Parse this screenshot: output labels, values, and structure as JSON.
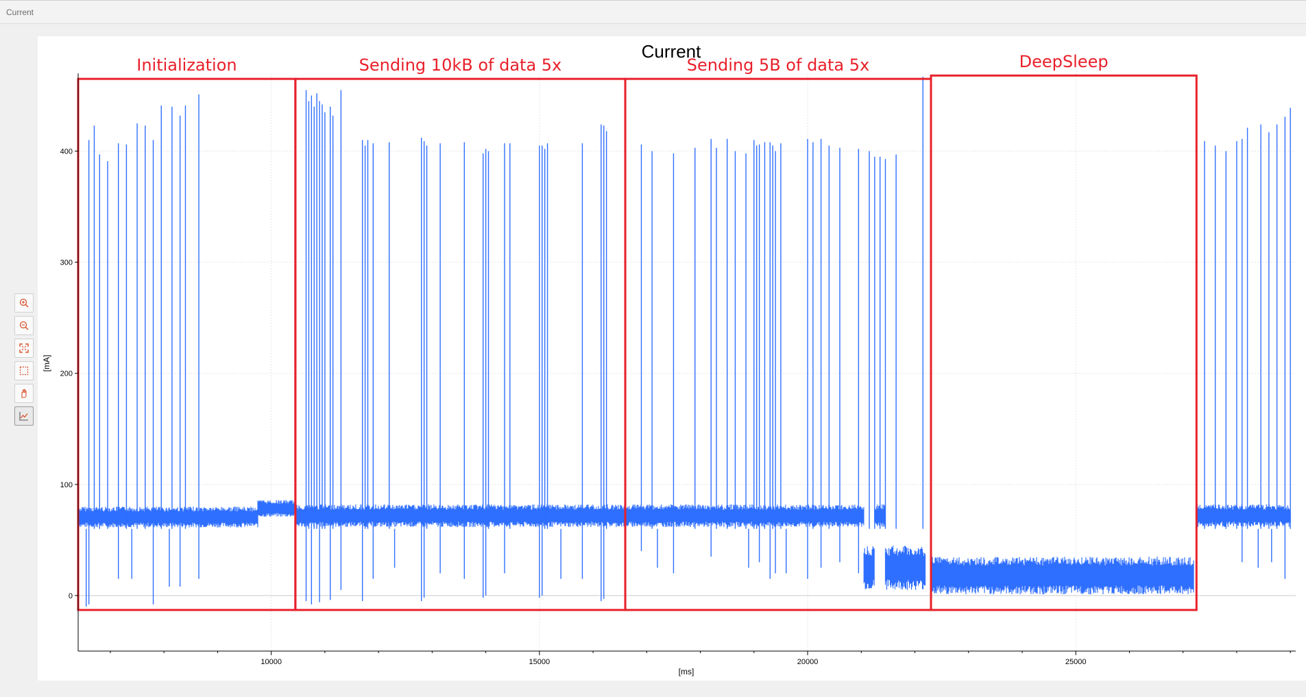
{
  "window": {
    "title": "Current"
  },
  "toolbar": {
    "tools": [
      {
        "icon": "zoom-in-icon"
      },
      {
        "icon": "zoom-out-icon"
      },
      {
        "icon": "fit-to-view-icon"
      },
      {
        "icon": "box-zoom-icon"
      },
      {
        "icon": "pan-hand-icon"
      },
      {
        "icon": "chart-line-icon",
        "active": true
      }
    ]
  },
  "chart_data": {
    "type": "line",
    "title": "Current",
    "xlabel": "[ms]",
    "ylabel": "[mA]",
    "xlim": [
      6400,
      29100
    ],
    "ylim": [
      -50,
      470
    ],
    "x_ticks": [
      10000,
      15000,
      20000,
      25000
    ],
    "y_ticks": [
      0,
      100,
      200,
      300,
      400
    ],
    "grid": true,
    "series_color": "#2f6fff",
    "annotation_color": "#e8202a",
    "regions": [
      {
        "label": "Initialization",
        "x": [
          6400,
          10450
        ],
        "y": [
          -13,
          465
        ]
      },
      {
        "label": "Sending 10kB of data 5x",
        "x": [
          10450,
          16600
        ],
        "y": [
          -13,
          465
        ]
      },
      {
        "label": "Sending 5B of data 5x",
        "x": [
          16600,
          22300
        ],
        "y": [
          -13,
          465
        ]
      },
      {
        "label": "DeepSleep",
        "x": [
          22300,
          27250
        ],
        "y": [
          -13,
          468
        ]
      }
    ],
    "baseline_segments": [
      {
        "x": [
          6400,
          9750
        ],
        "lo": 58,
        "hi": 80
      },
      {
        "x": [
          9750,
          10450
        ],
        "lo": 68,
        "hi": 86
      },
      {
        "x": [
          10450,
          21050
        ],
        "lo": 58,
        "hi": 82
      },
      {
        "x": [
          21050,
          21250
        ],
        "lo": -2,
        "hi": 45
      },
      {
        "x": [
          21250,
          21450
        ],
        "lo": 58,
        "hi": 82
      },
      {
        "x": [
          21450,
          22200
        ],
        "lo": -2,
        "hi": 45
      },
      {
        "x": [
          22300,
          27200
        ],
        "lo": -5,
        "hi": 35
      },
      {
        "x": [
          27250,
          29000
        ],
        "lo": 58,
        "hi": 82
      }
    ],
    "spikes_up": [
      [
        6600,
        410
      ],
      [
        6700,
        423
      ],
      [
        6800,
        397
      ],
      [
        6950,
        391
      ],
      [
        7150,
        407
      ],
      [
        7300,
        406
      ],
      [
        7500,
        425
      ],
      [
        7650,
        423
      ],
      [
        7800,
        410
      ],
      [
        7950,
        441
      ],
      [
        8150,
        440
      ],
      [
        8300,
        432
      ],
      [
        8400,
        441
      ],
      [
        8650,
        451
      ],
      [
        10650,
        455
      ],
      [
        10700,
        445
      ],
      [
        10750,
        450
      ],
      [
        10800,
        440
      ],
      [
        10850,
        452
      ],
      [
        10900,
        445
      ],
      [
        10950,
        442
      ],
      [
        11000,
        435
      ],
      [
        11100,
        440
      ],
      [
        11150,
        432
      ],
      [
        11300,
        455
      ],
      [
        11700,
        410
      ],
      [
        11750,
        405
      ],
      [
        11800,
        410
      ],
      [
        11900,
        407
      ],
      [
        12200,
        408
      ],
      [
        12800,
        412
      ],
      [
        12850,
        409
      ],
      [
        12900,
        405
      ],
      [
        13150,
        407
      ],
      [
        13600,
        408
      ],
      [
        13950,
        398
      ],
      [
        14000,
        402
      ],
      [
        14050,
        400
      ],
      [
        14350,
        407
      ],
      [
        14450,
        407
      ],
      [
        15000,
        405
      ],
      [
        15050,
        405
      ],
      [
        15100,
        402
      ],
      [
        15150,
        407
      ],
      [
        15800,
        407
      ],
      [
        16150,
        424
      ],
      [
        16200,
        423
      ],
      [
        16250,
        418
      ],
      [
        16900,
        406
      ],
      [
        17100,
        400
      ],
      [
        17500,
        398
      ],
      [
        17900,
        403
      ],
      [
        18200,
        411
      ],
      [
        18300,
        403
      ],
      [
        18500,
        411
      ],
      [
        18650,
        400
      ],
      [
        18850,
        398
      ],
      [
        19000,
        410
      ],
      [
        19050,
        405
      ],
      [
        19100,
        406
      ],
      [
        19200,
        408
      ],
      [
        19300,
        408
      ],
      [
        19350,
        405
      ],
      [
        19400,
        400
      ],
      [
        19500,
        407
      ],
      [
        20000,
        411
      ],
      [
        20100,
        408
      ],
      [
        20250,
        411
      ],
      [
        20400,
        405
      ],
      [
        20600,
        403
      ],
      [
        20950,
        402
      ],
      [
        21150,
        400
      ],
      [
        21250,
        395
      ],
      [
        21350,
        395
      ],
      [
        21450,
        393
      ],
      [
        21650,
        397
      ],
      [
        22150,
        467
      ],
      [
        27400,
        409
      ],
      [
        27600,
        405
      ],
      [
        27800,
        400
      ],
      [
        28000,
        409
      ],
      [
        28100,
        411
      ],
      [
        28200,
        421
      ],
      [
        28450,
        424
      ],
      [
        28600,
        417
      ],
      [
        28750,
        424
      ],
      [
        28900,
        431
      ],
      [
        29000,
        439
      ]
    ],
    "spikes_down": [
      [
        6550,
        -10
      ],
      [
        6600,
        -8
      ],
      [
        7150,
        15
      ],
      [
        7400,
        15
      ],
      [
        7800,
        -8
      ],
      [
        8100,
        8
      ],
      [
        8300,
        8
      ],
      [
        8650,
        15
      ],
      [
        10650,
        -5
      ],
      [
        10750,
        -8
      ],
      [
        10900,
        -6
      ],
      [
        11100,
        -4
      ],
      [
        11300,
        5
      ],
      [
        11700,
        -5
      ],
      [
        11900,
        15
      ],
      [
        12300,
        25
      ],
      [
        12800,
        -5
      ],
      [
        12850,
        -2
      ],
      [
        13150,
        20
      ],
      [
        13600,
        15
      ],
      [
        13950,
        -2
      ],
      [
        14000,
        0
      ],
      [
        14350,
        20
      ],
      [
        15000,
        -2
      ],
      [
        15050,
        0
      ],
      [
        15400,
        15
      ],
      [
        15800,
        15
      ],
      [
        16150,
        -5
      ],
      [
        16200,
        -3
      ],
      [
        16900,
        40
      ],
      [
        17200,
        25
      ],
      [
        17500,
        20
      ],
      [
        18200,
        35
      ],
      [
        18900,
        25
      ],
      [
        19100,
        30
      ],
      [
        19300,
        15
      ],
      [
        19400,
        20
      ],
      [
        19600,
        20
      ],
      [
        20000,
        15
      ],
      [
        20250,
        25
      ],
      [
        20600,
        30
      ],
      [
        20950,
        20
      ],
      [
        28100,
        30
      ],
      [
        28400,
        25
      ],
      [
        28650,
        30
      ],
      [
        28900,
        15
      ]
    ]
  }
}
